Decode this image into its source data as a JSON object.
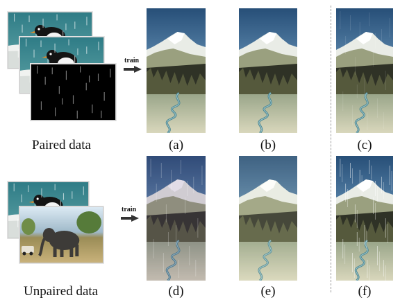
{
  "figure": {
    "top_row": {
      "input_label": "Paired data",
      "arrow_label": "train",
      "result_labels": [
        "(a)",
        "(b)",
        "(c)"
      ]
    },
    "bottom_row": {
      "input_label": "Unpaired data",
      "arrow_label": "train",
      "result_labels": [
        "(d)",
        "(e)",
        "(f)"
      ]
    }
  }
}
